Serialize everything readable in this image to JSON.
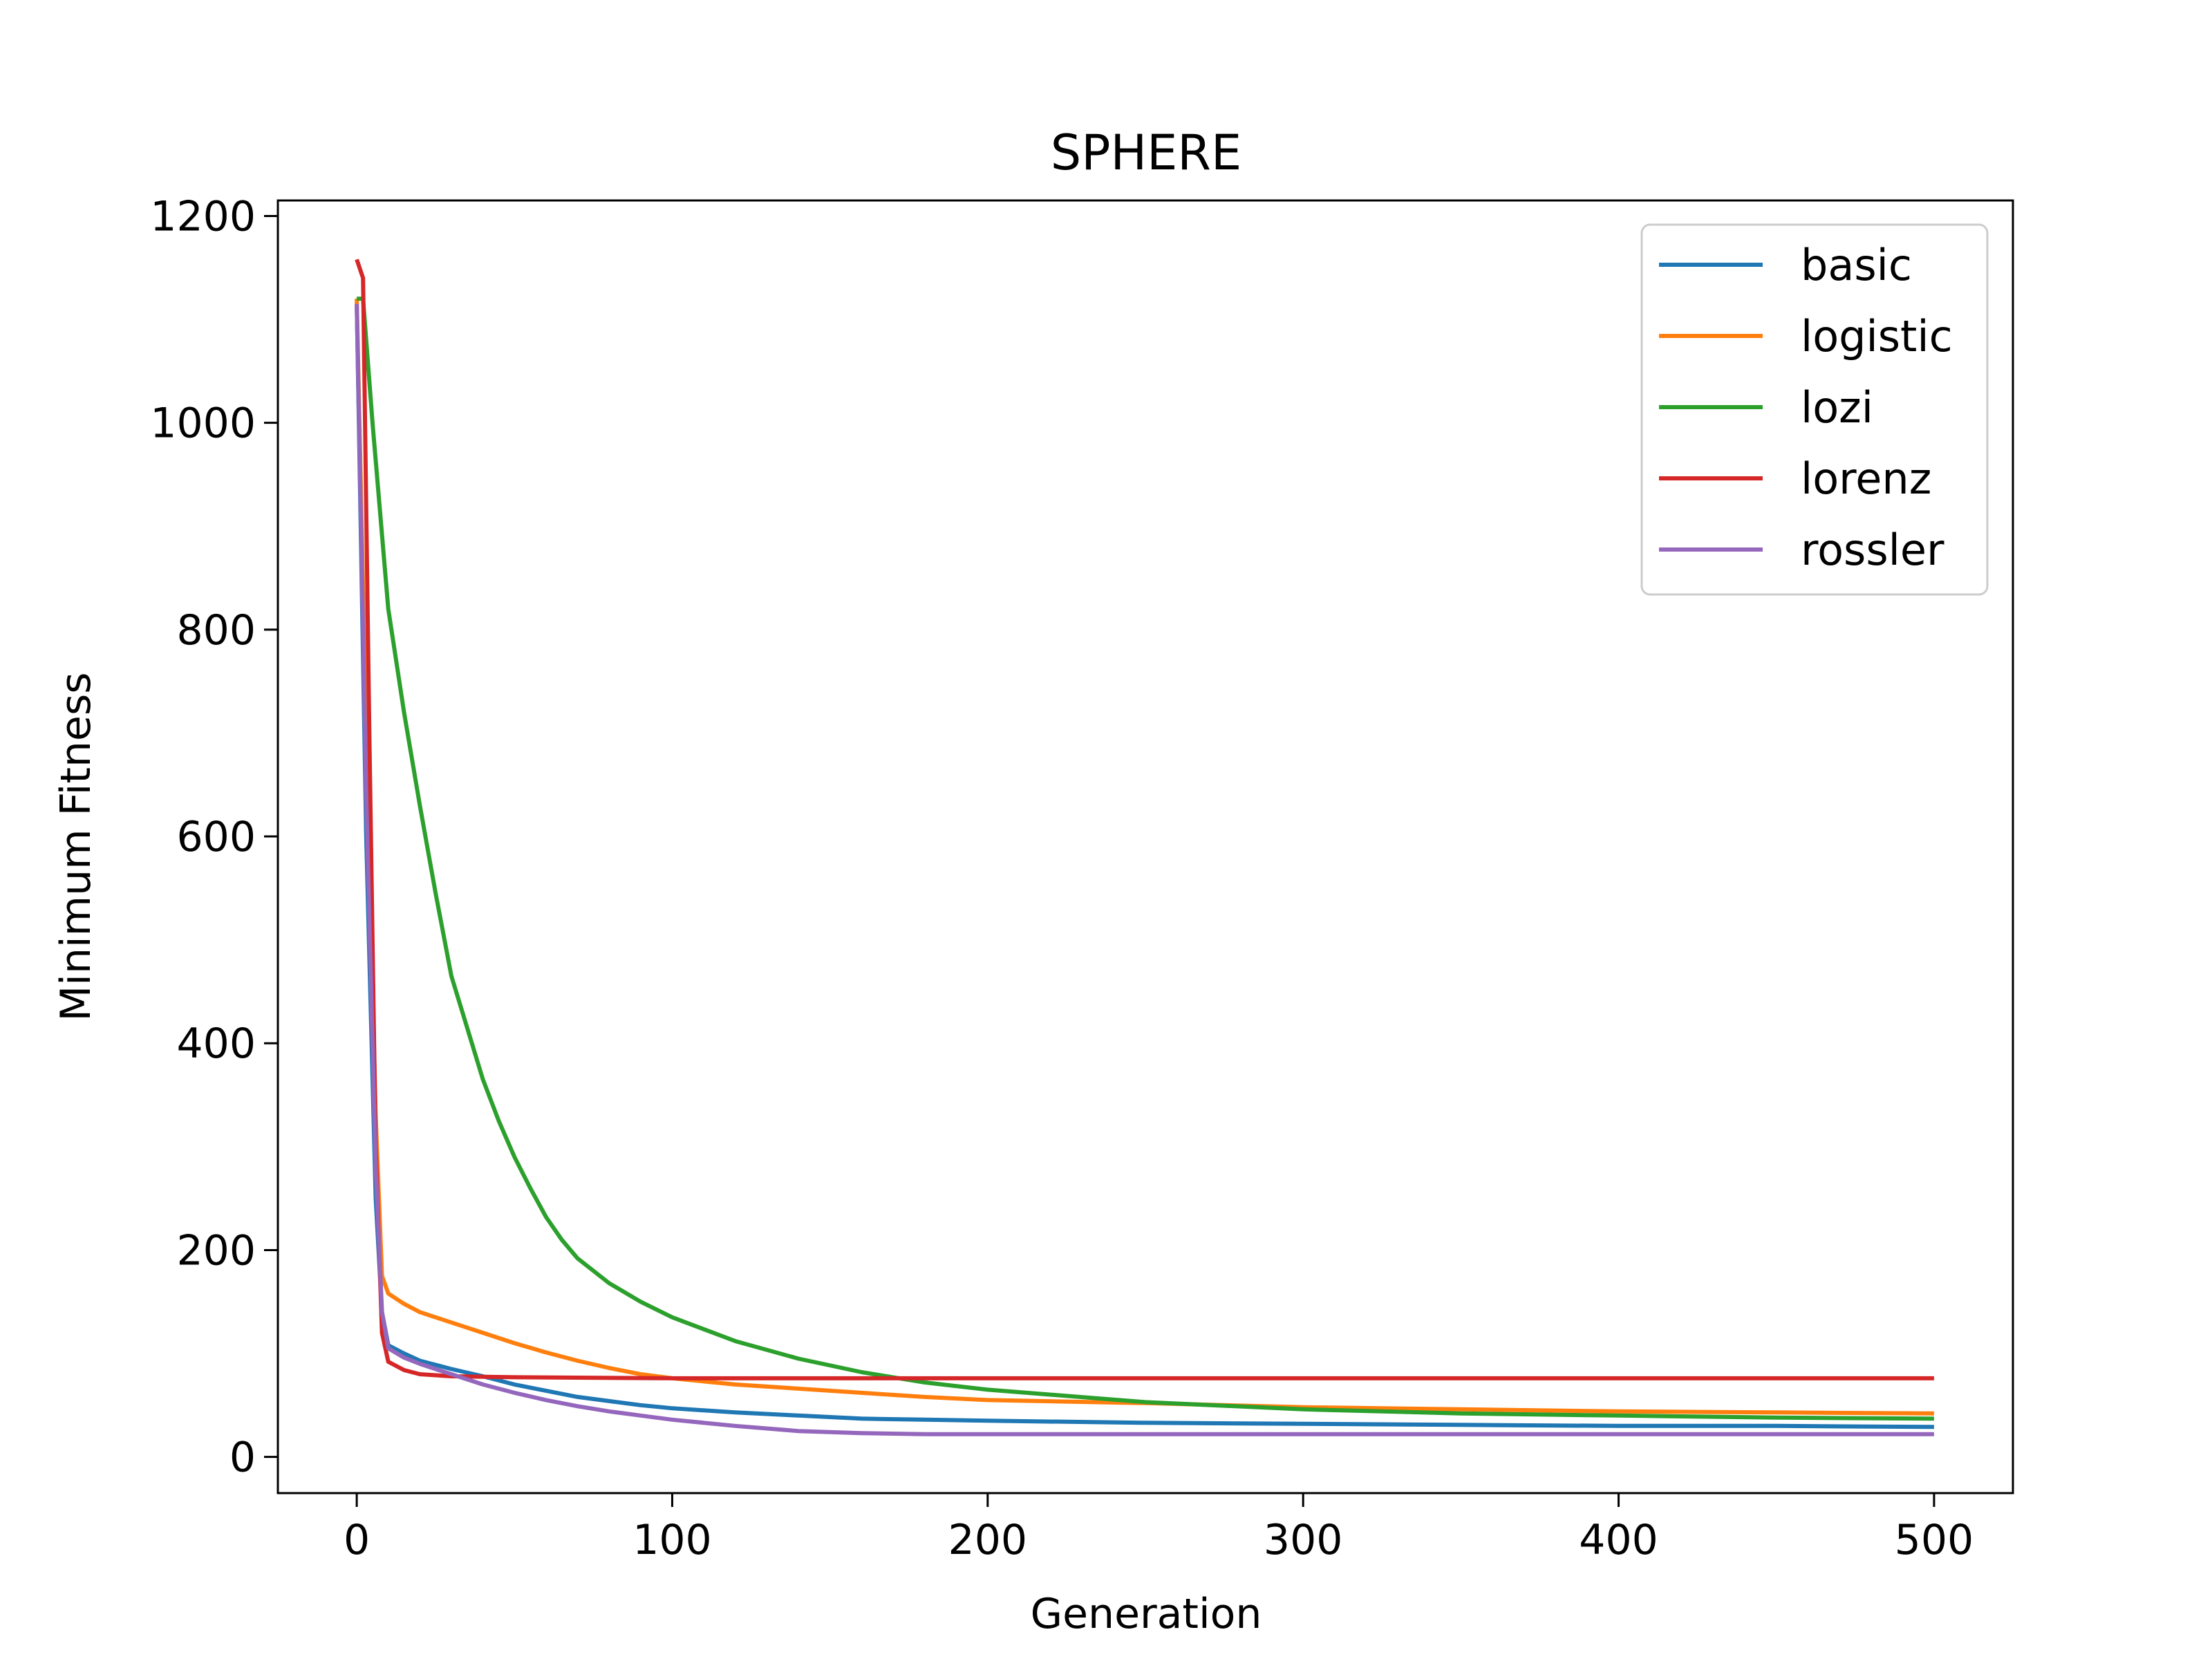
{
  "chart_data": {
    "type": "line",
    "title": "SPHERE",
    "xlabel": "Generation",
    "ylabel": "Minimum Fitness",
    "xlim": [
      -25,
      525
    ],
    "ylim": [
      -35,
      1215
    ],
    "xticks": [
      0,
      100,
      200,
      300,
      400,
      500
    ],
    "yticks": [
      0,
      200,
      400,
      600,
      800,
      1000,
      1200
    ],
    "grid": false,
    "legend_position": "top-right",
    "series": [
      {
        "name": "basic",
        "color": "#1f77b4",
        "points": [
          [
            0,
            1115
          ],
          [
            3,
            600
          ],
          [
            6,
            250
          ],
          [
            8,
            140
          ],
          [
            10,
            108
          ],
          [
            15,
            100
          ],
          [
            20,
            93
          ],
          [
            30,
            85
          ],
          [
            40,
            78
          ],
          [
            50,
            70
          ],
          [
            60,
            64
          ],
          [
            70,
            58
          ],
          [
            80,
            54
          ],
          [
            90,
            50
          ],
          [
            100,
            47
          ],
          [
            120,
            43
          ],
          [
            140,
            40
          ],
          [
            160,
            37
          ],
          [
            180,
            36
          ],
          [
            200,
            35
          ],
          [
            250,
            33
          ],
          [
            300,
            32
          ],
          [
            350,
            31
          ],
          [
            400,
            30
          ],
          [
            450,
            30
          ],
          [
            500,
            29
          ]
        ]
      },
      {
        "name": "logistic",
        "color": "#ff7f0e",
        "points": [
          [
            0,
            1120
          ],
          [
            3,
            700
          ],
          [
            6,
            330
          ],
          [
            8,
            175
          ],
          [
            10,
            158
          ],
          [
            15,
            148
          ],
          [
            20,
            140
          ],
          [
            30,
            130
          ],
          [
            40,
            120
          ],
          [
            50,
            110
          ],
          [
            60,
            101
          ],
          [
            70,
            93
          ],
          [
            80,
            86
          ],
          [
            90,
            80
          ],
          [
            100,
            76
          ],
          [
            120,
            70
          ],
          [
            140,
            66
          ],
          [
            160,
            62
          ],
          [
            180,
            58
          ],
          [
            200,
            55
          ],
          [
            250,
            52
          ],
          [
            300,
            48
          ],
          [
            350,
            46
          ],
          [
            400,
            44
          ],
          [
            450,
            43
          ],
          [
            500,
            42
          ]
        ]
      },
      {
        "name": "lozi",
        "color": "#2ca02c",
        "points": [
          [
            0,
            1120
          ],
          [
            2,
            1120
          ],
          [
            5,
            1000
          ],
          [
            10,
            820
          ],
          [
            15,
            720
          ],
          [
            20,
            630
          ],
          [
            25,
            545
          ],
          [
            30,
            465
          ],
          [
            35,
            415
          ],
          [
            40,
            365
          ],
          [
            45,
            325
          ],
          [
            50,
            290
          ],
          [
            55,
            260
          ],
          [
            60,
            232
          ],
          [
            65,
            210
          ],
          [
            70,
            192
          ],
          [
            80,
            168
          ],
          [
            90,
            150
          ],
          [
            100,
            135
          ],
          [
            120,
            112
          ],
          [
            140,
            95
          ],
          [
            160,
            82
          ],
          [
            180,
            72
          ],
          [
            200,
            65
          ],
          [
            250,
            53
          ],
          [
            300,
            46
          ],
          [
            350,
            42
          ],
          [
            400,
            40
          ],
          [
            450,
            38
          ],
          [
            500,
            37
          ]
        ]
      },
      {
        "name": "lorenz",
        "color": "#d62728",
        "points": [
          [
            0,
            1158
          ],
          [
            2,
            1140
          ],
          [
            4,
            700
          ],
          [
            6,
            300
          ],
          [
            8,
            120
          ],
          [
            10,
            92
          ],
          [
            15,
            84
          ],
          [
            20,
            80
          ],
          [
            30,
            78
          ],
          [
            50,
            77
          ],
          [
            100,
            76
          ],
          [
            200,
            76
          ],
          [
            300,
            76
          ],
          [
            400,
            76
          ],
          [
            500,
            76
          ]
        ]
      },
      {
        "name": "rossler",
        "color": "#9467bd",
        "points": [
          [
            0,
            1115
          ],
          [
            3,
            640
          ],
          [
            6,
            280
          ],
          [
            8,
            140
          ],
          [
            10,
            105
          ],
          [
            15,
            96
          ],
          [
            20,
            90
          ],
          [
            30,
            80
          ],
          [
            40,
            70
          ],
          [
            50,
            62
          ],
          [
            60,
            55
          ],
          [
            70,
            49
          ],
          [
            80,
            44
          ],
          [
            90,
            40
          ],
          [
            100,
            36
          ],
          [
            120,
            30
          ],
          [
            140,
            25
          ],
          [
            160,
            23
          ],
          [
            180,
            22
          ],
          [
            200,
            22
          ],
          [
            250,
            22
          ],
          [
            300,
            22
          ],
          [
            350,
            22
          ],
          [
            400,
            22
          ],
          [
            450,
            22
          ],
          [
            500,
            22
          ]
        ]
      }
    ]
  }
}
